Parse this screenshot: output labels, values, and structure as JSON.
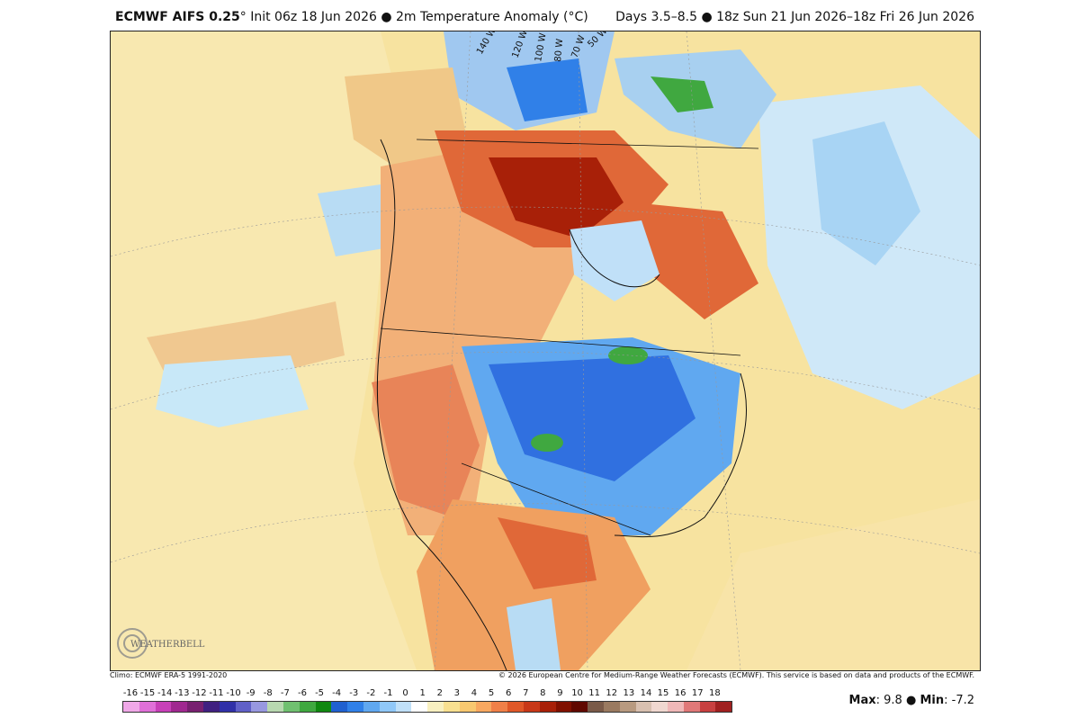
{
  "header": {
    "model": "ECMWF AIFS 0.25",
    "deg": "°",
    "init": "Init 06z 18 Jun 2026",
    "sep": "●",
    "field": "2m Temperature Anomaly (°C)",
    "range": "Days 3.5–8.5 ● 18z Sun 21 Jun 2026–18z Fri 26 Jun 2026"
  },
  "footer": {
    "climo": "Climo: ECMWF ERA-5 1991-2020",
    "copyright": "© 2026 European Centre for Medium-Range Weather Forecasts (ECMWF). This service is based on data and products of the ECMWF."
  },
  "map": {
    "longitude_labels": [
      "140 W",
      "120 W",
      "100 W",
      "80 W",
      "70 W",
      "50 W"
    ]
  },
  "colorbar": {
    "tick_labels": [
      "-16",
      "-15",
      "-14",
      "-13",
      "-12",
      "-11",
      "-10",
      "-9",
      "-8",
      "-7",
      "-6",
      "-5",
      "-4",
      "-3",
      "-2",
      "-1",
      "0",
      "1",
      "2",
      "3",
      "4",
      "5",
      "6",
      "7",
      "8",
      "9",
      "10",
      "11",
      "12",
      "13",
      "14",
      "15",
      "16",
      "17",
      "18"
    ],
    "colors": [
      "#f0a8e8",
      "#e070d8",
      "#c840b8",
      "#a02890",
      "#782070",
      "#402080",
      "#3030a8",
      "#6060c8",
      "#9898e0",
      "#b8d8b0",
      "#70c070",
      "#40a840",
      "#108810",
      "#2060d0",
      "#3080e8",
      "#60a8f0",
      "#90c8f8",
      "#c0e0f8",
      "#ffffff",
      "#f8f0c0",
      "#f8e090",
      "#f8c870",
      "#f8a860",
      "#f08048",
      "#e05828",
      "#c83818",
      "#a82008",
      "#801000",
      "#600800",
      "#7a5a48",
      "#9a7a60",
      "#b89a80",
      "#d8c0b0",
      "#f0d8d0",
      "#f0b8b8",
      "#e07878",
      "#c84040",
      "#a02020"
    ]
  },
  "stats": {
    "max_label": "Max",
    "max_value": "9.8",
    "min_label": "Min",
    "min_value": "-7.2"
  },
  "logo": {
    "text": "WEATHERBELL"
  }
}
